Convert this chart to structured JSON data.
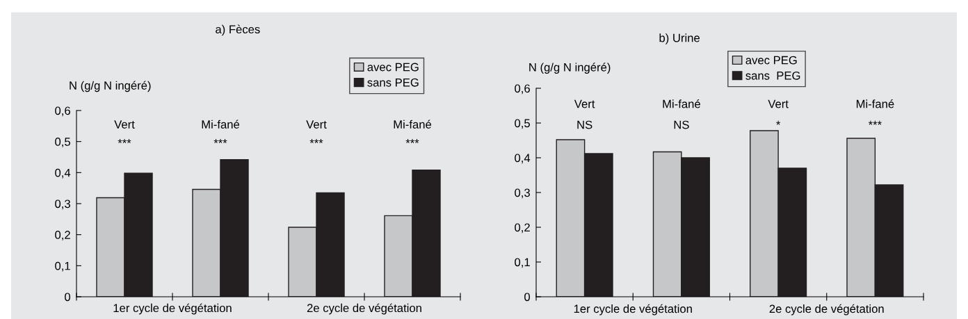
{
  "chart_data": [
    {
      "type": "bar",
      "title": "a) Fèces",
      "ylabel": "N (g/g N ingéré)",
      "categories": [
        "Vert",
        "Mi-fané",
        "Vert",
        "Mi-fané"
      ],
      "series": [
        {
          "name": "avec PEG",
          "color": "#c6c7c9",
          "values": [
            0.319,
            0.346,
            0.224,
            0.261
          ]
        },
        {
          "name": "sans PEG",
          "color": "#231f20",
          "values": [
            0.398,
            0.442,
            0.335,
            0.408
          ]
        }
      ],
      "ylim": [
        0,
        0.6
      ],
      "yticks": [
        {
          "value": 0,
          "label": "0"
        },
        {
          "value": 0.1,
          "label": "0,1"
        },
        {
          "value": 0.2,
          "label": "0,2"
        },
        {
          "value": 0.3,
          "label": "0,3"
        },
        {
          "value": 0.4,
          "label": "0,4"
        },
        {
          "value": 0.5,
          "label": "0,5"
        },
        {
          "value": 0.6,
          "label": "0,6"
        }
      ],
      "annotations": [
        "1er cycle de végétation",
        "2e cycle de végétation",
        "***",
        "***",
        "***",
        "***"
      ],
      "grid": false,
      "legend": "top right"
    },
    {
      "type": "bar",
      "title": "b) Urine",
      "ylabel": "N (g/g N ingéré)",
      "categories": [
        "Vert",
        "Mi-fané",
        "Vert",
        "Mi-fané"
      ],
      "series": [
        {
          "name": "avec PEG",
          "color": "#c6c7c9",
          "values": [
            0.452,
            0.417,
            0.478,
            0.456
          ]
        },
        {
          "name": "sans  PEG",
          "color": "#231f20",
          "values": [
            0.412,
            0.4,
            0.37,
            0.322
          ]
        }
      ],
      "ylim": [
        0,
        0.6
      ],
      "yticks": [
        {
          "value": 0,
          "label": "0"
        },
        {
          "value": 0.1,
          "label": "0,1"
        },
        {
          "value": 0.2,
          "label": "0,2"
        },
        {
          "value": 0.3,
          "label": "0,3"
        },
        {
          "value": 0.4,
          "label": "0,4"
        },
        {
          "value": 0.5,
          "label": "0,5"
        },
        {
          "value": 0.6,
          "label": "0,6"
        }
      ],
      "annotations": [
        "1er cycle de végétation",
        "2e cycle de végétation",
        "NS",
        "NS",
        "*",
        "***"
      ],
      "grid": false,
      "legend": "top right"
    }
  ]
}
